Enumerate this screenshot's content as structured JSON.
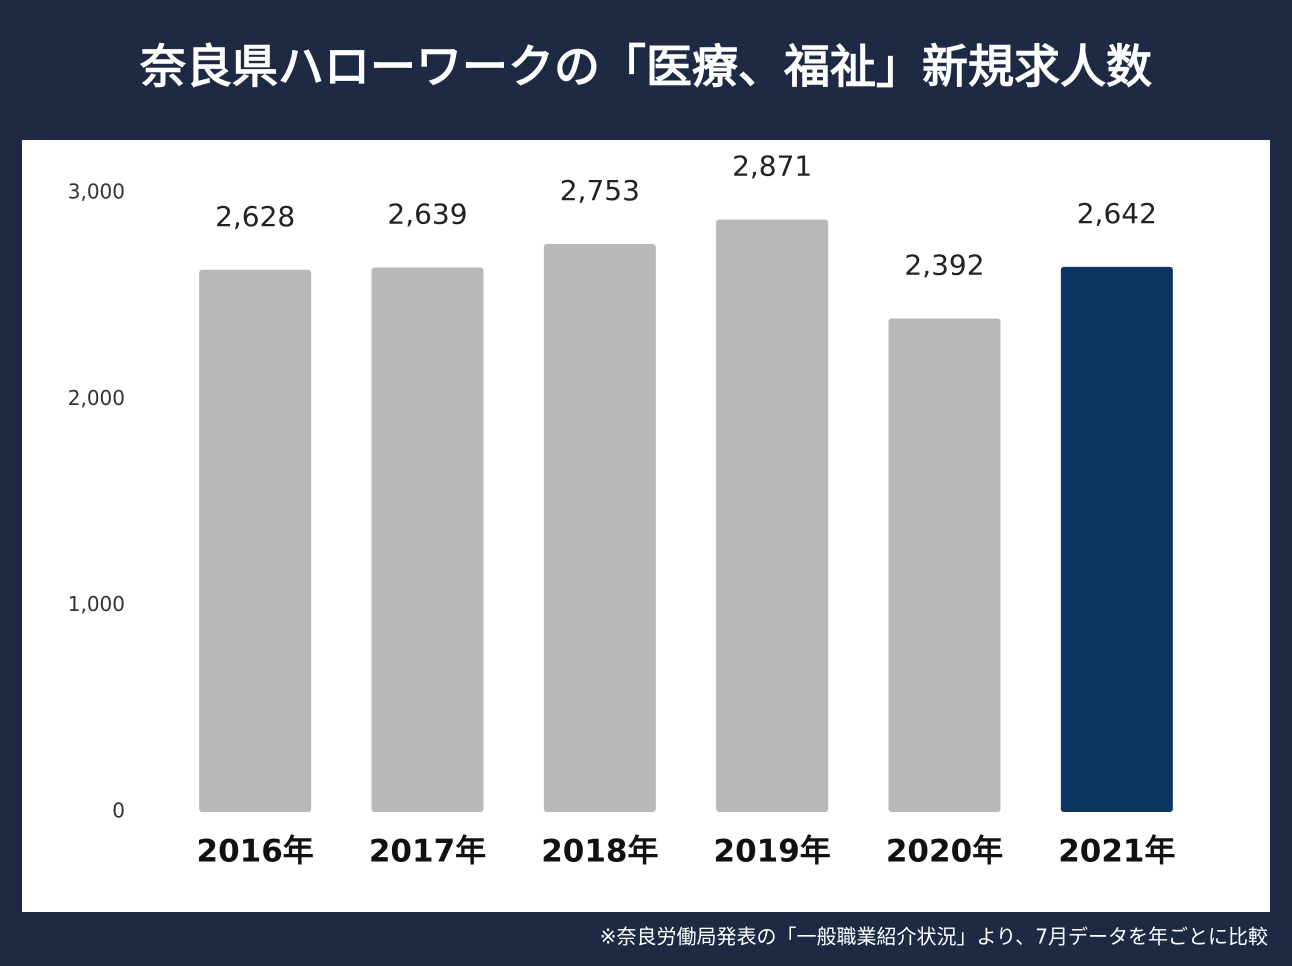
{
  "chart_data": {
    "type": "bar",
    "title": "奈良県ハローワークの「医療、福祉」新規求人数",
    "categories": [
      "2016年",
      "2017年",
      "2018年",
      "2019年",
      "2020年",
      "2021年"
    ],
    "values": [
      2628,
      2639,
      2753,
      2871,
      2392,
      2642
    ],
    "value_labels": [
      "2,628",
      "2,639",
      "2,753",
      "2,871",
      "2,392",
      "2,642"
    ],
    "colors": [
      "#b8b8b8",
      "#b8b8b8",
      "#b8b8b8",
      "#b8b8b8",
      "#b8b8b8",
      "#0b3560"
    ],
    "ylim": [
      0,
      3000
    ],
    "yticks": [
      0,
      {
        "value": 1000,
        "label": "1,000"
      },
      {
        "value": 2000,
        "label": "2,000"
      },
      {
        "value": 3000,
        "label": "3,000"
      }
    ],
    "grid": false,
    "note": "※奈良労働局発表の「一般職業紹介状況」より、7月データを年ごとに比較"
  }
}
